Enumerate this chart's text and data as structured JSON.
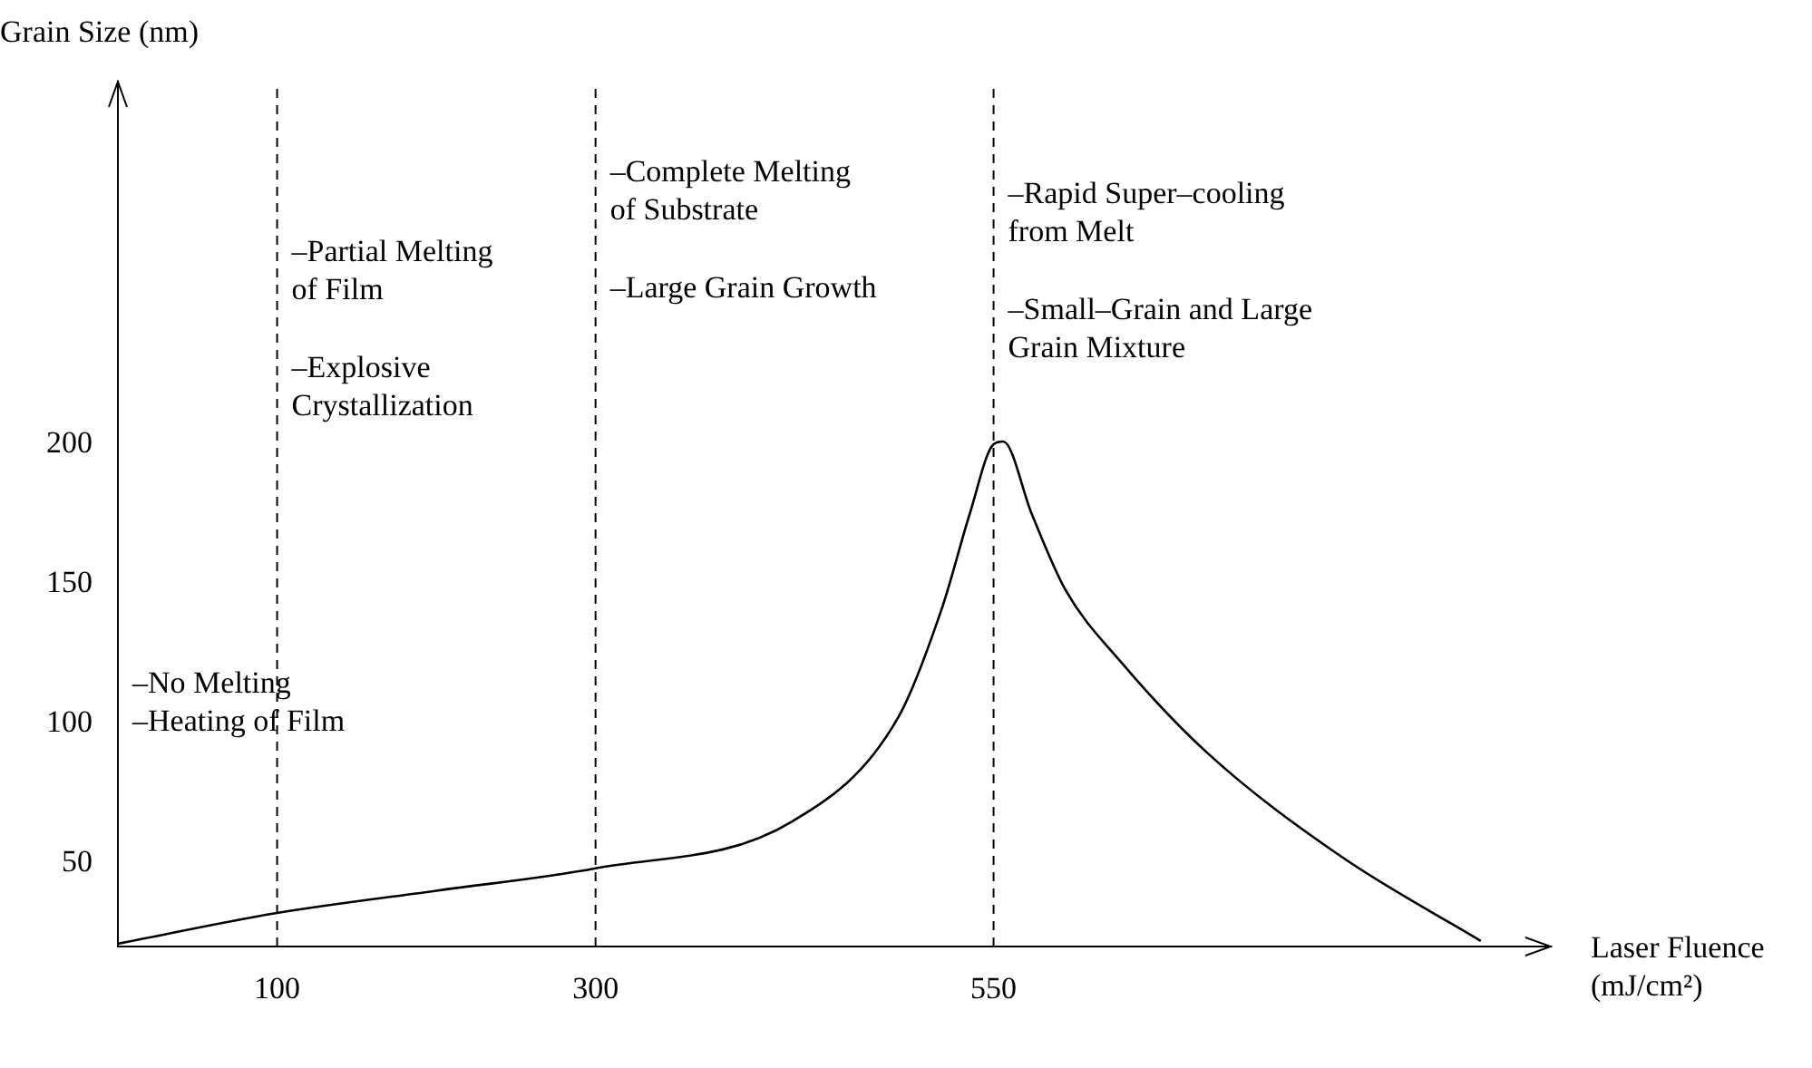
{
  "chart_data": {
    "type": "line",
    "xlabel": "Laser Fluence (mJ/cm²)",
    "ylabel": "Grain Size (nm)",
    "x": [
      0,
      100,
      200,
      300,
      424,
      490,
      518,
      535,
      550,
      556,
      574,
      595,
      630,
      685,
      769,
      856
    ],
    "series": [
      {
        "color": "#000000",
        "values": [
          21,
          32,
          40,
          48,
          65,
          102,
          142,
          175,
          200,
          201,
          175,
          148,
          122,
          89,
          52,
          22
        ]
      }
    ],
    "xlim": [
      0,
      900
    ],
    "ylim": [
      20,
      330
    ],
    "xticks": [
      100,
      300,
      550
    ],
    "yticks": [
      50,
      100,
      150,
      200
    ],
    "marker": "none",
    "line_style": "solid",
    "ref_lines": [
      {
        "axis": "x",
        "value": 100,
        "line_style": "dashed",
        "color": "#000000"
      },
      {
        "axis": "x",
        "value": 300,
        "line_style": "dashed",
        "color": "#000000"
      },
      {
        "axis": "x",
        "value": 550,
        "line_style": "dashed",
        "color": "#000000"
      }
    ],
    "annotations": [
      "–No Melting\n–Heating of Film",
      "–Partial Melting\n of Film\n\n–Explosive\nCrystallization",
      "–Complete Melting\n of Substrate\n\n–Large Grain Growth",
      "–Rapid Super–cooling\n from Melt\n\n–Small–Grain and Large\nGrain Mixture"
    ]
  }
}
